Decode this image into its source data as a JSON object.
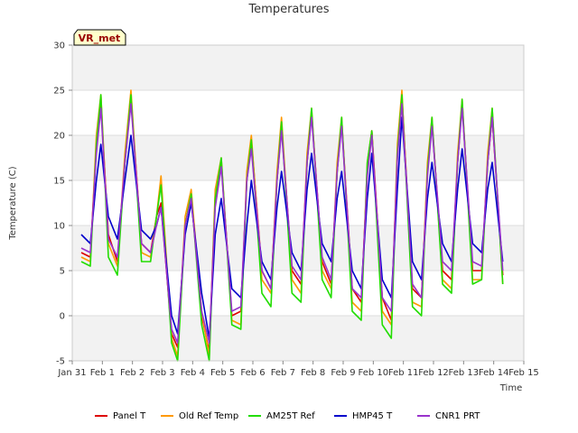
{
  "chart_data": {
    "type": "line",
    "title": "Temperatures",
    "xlabel": "Time",
    "ylabel": "Temperature (C)",
    "site_tag": "VR_met",
    "ylim": [
      -5,
      30
    ],
    "xlim": [
      0,
      15
    ],
    "y_ticks": [
      -5,
      0,
      5,
      10,
      15,
      20,
      25,
      30
    ],
    "x_ticks": [
      {
        "pos": 0,
        "label": "Jan 31"
      },
      {
        "pos": 1,
        "label": "Feb 1"
      },
      {
        "pos": 2,
        "label": "Feb 2"
      },
      {
        "pos": 3,
        "label": "Feb 3"
      },
      {
        "pos": 4,
        "label": "Feb 4"
      },
      {
        "pos": 5,
        "label": "Feb 5"
      },
      {
        "pos": 6,
        "label": "Feb 6"
      },
      {
        "pos": 7,
        "label": "Feb 7"
      },
      {
        "pos": 8,
        "label": "Feb 8"
      },
      {
        "pos": 9,
        "label": "Feb 9"
      },
      {
        "pos": 10,
        "label": "Feb 10"
      },
      {
        "pos": 11,
        "label": "Feb 11"
      },
      {
        "pos": 12,
        "label": "Feb 12"
      },
      {
        "pos": 13,
        "label": "Feb 13"
      },
      {
        "pos": 14,
        "label": "Feb 14"
      },
      {
        "pos": 15,
        "label": "Feb 15"
      }
    ],
    "grid": true,
    "shaded_bands": [
      [
        -5,
        0
      ],
      [
        5,
        10
      ],
      [
        15,
        20
      ],
      [
        25,
        30
      ]
    ],
    "band_color": "#f2f2f2",
    "series": [
      {
        "name": "Panel T",
        "color": "#dd0000",
        "x": [
          0.3,
          0.6,
          0.8,
          0.95,
          1.2,
          1.5,
          1.75,
          1.95,
          2.3,
          2.6,
          2.8,
          2.95,
          3.3,
          3.5,
          3.75,
          3.95,
          4.3,
          4.55,
          4.75,
          4.95,
          5.3,
          5.6,
          5.8,
          5.95,
          6.3,
          6.6,
          6.8,
          6.95,
          7.3,
          7.6,
          7.8,
          7.95,
          8.3,
          8.6,
          8.8,
          8.95,
          9.3,
          9.6,
          9.8,
          9.95,
          10.3,
          10.6,
          10.8,
          10.95,
          11.3,
          11.6,
          11.8,
          11.95,
          12.3,
          12.6,
          12.8,
          12.95,
          13.3,
          13.6,
          13.8,
          13.95,
          14.3
        ],
        "y": [
          7,
          6.5,
          19,
          23.5,
          9,
          6,
          17,
          24,
          8,
          7,
          11,
          12.5,
          -2,
          -3.5,
          10,
          13.5,
          0,
          -4,
          13,
          17,
          0,
          0.5,
          15,
          19.5,
          5,
          3,
          15,
          21,
          5,
          3.5,
          17,
          22.5,
          6,
          3.5,
          16,
          21.5,
          3,
          1.5,
          16,
          20.5,
          2,
          -0.5,
          18,
          24.5,
          3,
          2,
          16,
          21.5,
          5,
          4,
          17,
          23.5,
          5,
          5,
          17,
          22,
          4.5
        ]
      },
      {
        "name": "Old Ref Temp",
        "color": "#ff9900",
        "x": [
          0.3,
          0.6,
          0.8,
          0.95,
          1.2,
          1.5,
          1.75,
          1.95,
          2.3,
          2.6,
          2.8,
          2.95,
          3.3,
          3.5,
          3.75,
          3.95,
          4.3,
          4.55,
          4.75,
          4.95,
          5.3,
          5.6,
          5.8,
          5.95,
          6.3,
          6.6,
          6.8,
          6.95,
          7.3,
          7.6,
          7.8,
          7.95,
          8.3,
          8.6,
          8.8,
          8.95,
          9.3,
          9.6,
          9.8,
          9.95,
          10.3,
          10.6,
          10.8,
          10.95,
          11.3,
          11.6,
          11.8,
          11.95,
          12.3,
          12.6,
          12.8,
          12.95,
          13.3,
          13.6,
          13.8,
          13.95,
          14.3
        ],
        "y": [
          6.5,
          6,
          20,
          24.5,
          8,
          5.5,
          18,
          25,
          7,
          6.5,
          11,
          15.5,
          -2.5,
          -4.5,
          11,
          14,
          0.5,
          -4.5,
          14,
          17.5,
          -0.5,
          -1,
          16,
          20,
          4,
          2.5,
          16,
          22,
          4,
          2.5,
          18,
          23,
          5,
          3,
          17,
          22,
          1.5,
          0.5,
          17,
          20.5,
          0.5,
          -1,
          19,
          25,
          1.5,
          1,
          17,
          22,
          4,
          3,
          18,
          24,
          4,
          4,
          18,
          23,
          3.5
        ]
      },
      {
        "name": "AM25T Ref",
        "color": "#22dd00",
        "x": [
          0.3,
          0.6,
          0.8,
          0.95,
          1.2,
          1.5,
          1.75,
          1.95,
          2.3,
          2.6,
          2.8,
          2.95,
          3.3,
          3.5,
          3.75,
          3.95,
          4.3,
          4.55,
          4.75,
          4.95,
          5.3,
          5.6,
          5.8,
          5.95,
          6.3,
          6.6,
          6.8,
          6.95,
          7.3,
          7.6,
          7.8,
          7.95,
          8.3,
          8.6,
          8.8,
          8.95,
          9.3,
          9.6,
          9.8,
          9.95,
          10.3,
          10.6,
          10.8,
          10.95,
          11.3,
          11.6,
          11.8,
          11.95,
          12.3,
          12.6,
          12.8,
          12.95,
          13.3,
          13.6,
          13.8,
          13.95,
          14.3
        ],
        "y": [
          6,
          5.5,
          19,
          24.5,
          6.5,
          4.5,
          17,
          24.5,
          6,
          6,
          11,
          14.5,
          -3,
          -5,
          10,
          13.5,
          -1,
          -5,
          13,
          17.5,
          -1,
          -1.5,
          15,
          19.5,
          2.5,
          1,
          15,
          21.5,
          2.5,
          1.5,
          17,
          23,
          4,
          2,
          16,
          22,
          0.5,
          -0.5,
          17,
          20.5,
          -1,
          -2.5,
          18,
          24.5,
          1,
          0,
          16,
          22,
          3.5,
          2.5,
          17,
          24,
          3.5,
          4,
          17,
          23,
          3.5
        ]
      },
      {
        "name": "HMP45 T",
        "color": "#0000cc",
        "x": [
          0.3,
          0.6,
          0.8,
          0.95,
          1.2,
          1.5,
          1.75,
          1.95,
          2.3,
          2.6,
          2.8,
          2.95,
          3.3,
          3.5,
          3.75,
          3.95,
          4.3,
          4.55,
          4.75,
          4.95,
          5.3,
          5.6,
          5.8,
          5.95,
          6.3,
          6.6,
          6.8,
          6.95,
          7.3,
          7.6,
          7.8,
          7.95,
          8.3,
          8.6,
          8.8,
          8.95,
          9.3,
          9.6,
          9.8,
          9.95,
          10.3,
          10.6,
          10.8,
          10.95,
          11.3,
          11.6,
          11.8,
          11.95,
          12.3,
          12.6,
          12.8,
          12.95,
          13.3,
          13.6,
          13.8,
          13.95,
          14.3
        ],
        "y": [
          9,
          8,
          15,
          19,
          11,
          8.5,
          15,
          20,
          9.5,
          8.5,
          10,
          12,
          0,
          -2,
          9,
          12.5,
          2.5,
          -2.5,
          9,
          13,
          3,
          2,
          10,
          15,
          6,
          4,
          12,
          16,
          7,
          5,
          14,
          18,
          8,
          6,
          13,
          16,
          5,
          3,
          13,
          18,
          4,
          2,
          14,
          22,
          6,
          4,
          13,
          17,
          8,
          6,
          14,
          18.5,
          8,
          7,
          14,
          17,
          6
        ]
      },
      {
        "name": "CNR1 PRT",
        "color": "#9933cc",
        "x": [
          0.3,
          0.6,
          0.8,
          0.95,
          1.2,
          1.5,
          1.75,
          1.95,
          2.3,
          2.6,
          2.8,
          2.95,
          3.3,
          3.5,
          3.75,
          3.95,
          4.3,
          4.55,
          4.75,
          4.95,
          5.3,
          5.6,
          5.8,
          5.95,
          6.3,
          6.6,
          6.8,
          6.95,
          7.3,
          7.6,
          7.8,
          7.95,
          8.3,
          8.6,
          8.8,
          8.95,
          9.3,
          9.6,
          9.8,
          9.95,
          10.3,
          10.6,
          10.8,
          10.95,
          11.3,
          11.6,
          11.8,
          11.95,
          12.3,
          12.6,
          12.8,
          12.95,
          13.3,
          13.6,
          13.8,
          13.95,
          14.3
        ],
        "y": [
          7.5,
          7,
          18,
          23,
          8.5,
          6.5,
          17,
          23.5,
          8,
          7,
          10,
          12,
          -1.5,
          -3,
          10,
          13,
          0.5,
          -3,
          12,
          16.5,
          0.5,
          1,
          15,
          18.5,
          5,
          3,
          15,
          20.5,
          5.5,
          4,
          17,
          22,
          6.5,
          4,
          16,
          21,
          3,
          2,
          15.5,
          20,
          2,
          0.5,
          17.5,
          23.5,
          3.5,
          2,
          15.5,
          21,
          6,
          5,
          17,
          23,
          6,
          5.5,
          17,
          22,
          5
        ]
      }
    ]
  }
}
